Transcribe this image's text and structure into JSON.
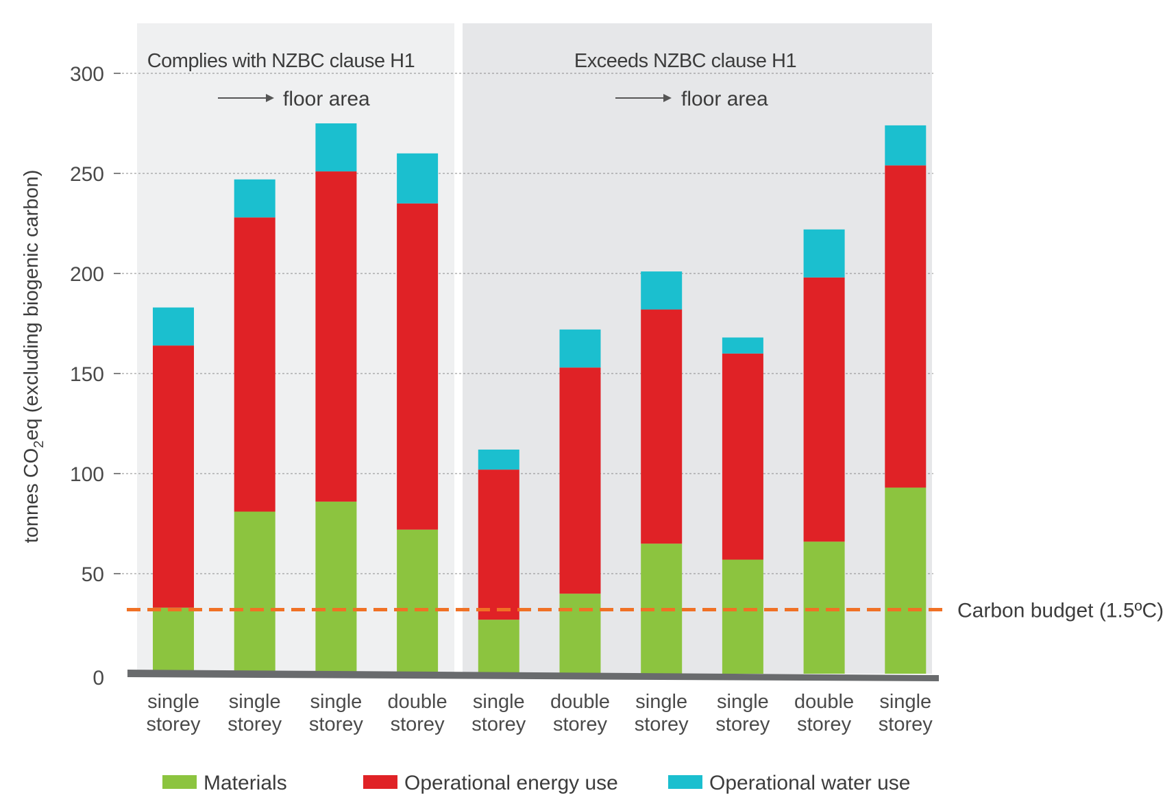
{
  "chart_data": {
    "type": "bar",
    "stacked": true,
    "ylabel": "tonnes CO₂eq (excluding biogenic carbon)",
    "ylim": [
      0,
      300
    ],
    "yticks": [
      0,
      50,
      100,
      150,
      200,
      250,
      300
    ],
    "grid": true,
    "legend_position": "bottom",
    "groups": [
      {
        "title": "Complies with NZBC clause H1",
        "subtitle": "floor area",
        "count": 4
      },
      {
        "title": "Exceeds NZBC clause H1",
        "subtitle": "floor area",
        "count": 6
      }
    ],
    "categories": [
      [
        "single",
        "storey"
      ],
      [
        "single",
        "storey"
      ],
      [
        "single",
        "storey"
      ],
      [
        "double",
        "storey"
      ],
      [
        "single",
        "storey"
      ],
      [
        "double",
        "storey"
      ],
      [
        "single",
        "storey"
      ],
      [
        "single",
        "storey"
      ],
      [
        "double",
        "storey"
      ],
      [
        "single",
        "storey"
      ]
    ],
    "series": [
      {
        "name": "Materials",
        "color": "#8cc43f",
        "values": [
          33,
          81,
          86,
          72,
          27,
          40,
          65,
          57,
          66,
          93
        ]
      },
      {
        "name": "Operational energy use",
        "color": "#e02226",
        "values": [
          131,
          147,
          165,
          163,
          75,
          113,
          117,
          103,
          132,
          161
        ]
      },
      {
        "name": "Operational water use",
        "color": "#1bbfcf",
        "values": [
          19,
          19,
          24,
          25,
          10,
          19,
          19,
          8,
          24,
          20
        ]
      }
    ],
    "reference_line": {
      "label": "Carbon budget (1.5ºC)",
      "value": 32,
      "color": "#f07125"
    },
    "panel_colors": [
      "#eff0f1",
      "#e6e7e9"
    ]
  }
}
